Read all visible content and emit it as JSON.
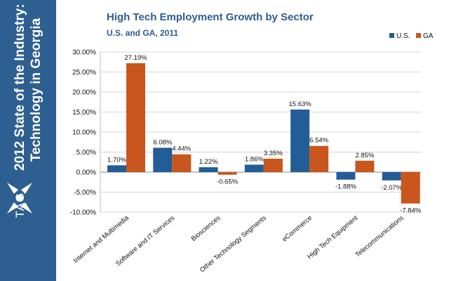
{
  "sidebar": {
    "title_line1": "2012 State of the Industry:",
    "title_line2": "Technology in Georgia",
    "logo_text": "TAG"
  },
  "colors": {
    "sidebar": "#2e5f91",
    "us": "#235d96",
    "ga": "#c9561d"
  },
  "chart_data": {
    "type": "bar",
    "title": "High Tech Employment Growth by Sector",
    "subtitle": "U.S. and GA, 2011",
    "categories": [
      "Internet and Multimedia",
      "Software and IT Services",
      "Biosciences",
      "Other Technology Segments",
      "eCommerce",
      "High Tech Equipment",
      "Telecommunications"
    ],
    "series": [
      {
        "name": "U.S.",
        "color": "#235d96",
        "values": [
          1.7,
          6.08,
          1.22,
          1.86,
          15.63,
          -1.88,
          -2.07
        ],
        "labels": [
          "1.70%",
          "6.08%",
          "1.22%",
          "1.86%",
          "15.63%",
          "-1.88%",
          "-2.07%"
        ]
      },
      {
        "name": "GA",
        "color": "#c9561d",
        "values": [
          27.19,
          4.44,
          -0.65,
          3.35,
          6.54,
          2.85,
          -7.84
        ],
        "labels": [
          "27.19%",
          "4.44%",
          "-0.65%",
          "3.35%",
          "6.54%",
          "2.85%",
          "-7.84%"
        ]
      }
    ],
    "yticks": [
      "30.00%",
      "25.00%",
      "20.00%",
      "15.00%",
      "10.00%",
      "5.00%",
      "0.00%",
      "-5.00%",
      "-10.00%"
    ],
    "ylim": [
      -10,
      30
    ],
    "grid": true,
    "legend_position": "top-right"
  }
}
